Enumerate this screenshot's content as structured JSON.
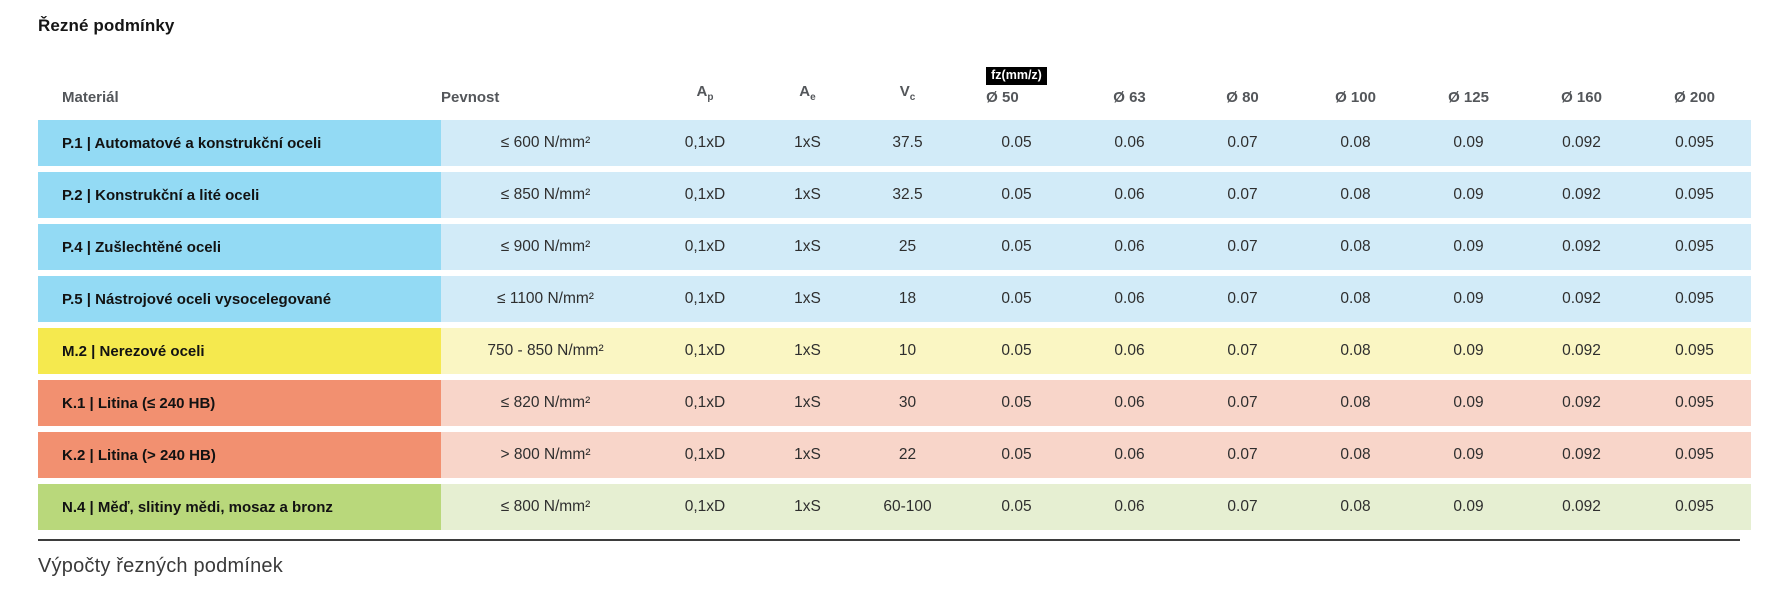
{
  "page": {
    "title": "Řezné podmínky",
    "section_footer": "Výpočty řezných podmínek"
  },
  "table": {
    "headers": {
      "material": "Materiál",
      "pevnost": "Pevnost",
      "ap_base": "A",
      "ap_sub": "p",
      "ae_base": "A",
      "ae_sub": "e",
      "vc_base": "V",
      "vc_sub": "c",
      "fz_badge": "fz(mm/z)",
      "diameters": [
        "Ø 50",
        "Ø 63",
        "Ø 80",
        "Ø 100",
        "Ø 125",
        "Ø 160",
        "Ø 200"
      ]
    },
    "colors": {
      "blue": {
        "label": "#93daf4",
        "body": "#d2ebf8"
      },
      "yellow": {
        "label": "#f5e94e",
        "body": "#faf6c3"
      },
      "orange": {
        "label": "#f29070",
        "body": "#f8d5c9"
      },
      "green": {
        "label": "#b9d87b",
        "body": "#e6efd2"
      }
    },
    "rows": [
      {
        "group": "blue",
        "material": "P.1 | Automatové a konstrukční oceli",
        "pevnost": "≤ 600 N/mm²",
        "ap": "0,1xD",
        "ae": "1xS",
        "vc": "37.5",
        "fz": [
          "0.05",
          "0.06",
          "0.07",
          "0.08",
          "0.09",
          "0.092",
          "0.095"
        ]
      },
      {
        "group": "blue",
        "material": "P.2 | Konstrukční a lité oceli",
        "pevnost": "≤ 850 N/mm²",
        "ap": "0,1xD",
        "ae": "1xS",
        "vc": "32.5",
        "fz": [
          "0.05",
          "0.06",
          "0.07",
          "0.08",
          "0.09",
          "0.092",
          "0.095"
        ]
      },
      {
        "group": "blue",
        "material": "P.4 | Zušlechtěné oceli",
        "pevnost": "≤ 900 N/mm²",
        "ap": "0,1xD",
        "ae": "1xS",
        "vc": "25",
        "fz": [
          "0.05",
          "0.06",
          "0.07",
          "0.08",
          "0.09",
          "0.092",
          "0.095"
        ]
      },
      {
        "group": "blue",
        "material": "P.5 | Nástrojové oceli vysocelegované",
        "pevnost": "≤ 1100 N/mm²",
        "ap": "0,1xD",
        "ae": "1xS",
        "vc": "18",
        "fz": [
          "0.05",
          "0.06",
          "0.07",
          "0.08",
          "0.09",
          "0.092",
          "0.095"
        ]
      },
      {
        "group": "yellow",
        "material": "M.2 | Nerezové oceli",
        "pevnost": "750 - 850 N/mm²",
        "ap": "0,1xD",
        "ae": "1xS",
        "vc": "10",
        "fz": [
          "0.05",
          "0.06",
          "0.07",
          "0.08",
          "0.09",
          "0.092",
          "0.095"
        ]
      },
      {
        "group": "orange",
        "material": "K.1 | Litina (≤ 240 HB)",
        "pevnost": "≤ 820 N/mm²",
        "ap": "0,1xD",
        "ae": "1xS",
        "vc": "30",
        "fz": [
          "0.05",
          "0.06",
          "0.07",
          "0.08",
          "0.09",
          "0.092",
          "0.095"
        ]
      },
      {
        "group": "orange",
        "material": "K.2 | Litina (> 240 HB)",
        "pevnost": "> 800 N/mm²",
        "ap": "0,1xD",
        "ae": "1xS",
        "vc": "22",
        "fz": [
          "0.05",
          "0.06",
          "0.07",
          "0.08",
          "0.09",
          "0.092",
          "0.095"
        ]
      },
      {
        "group": "green",
        "material": "N.4 | Měď, slitiny mědi, mosaz a bronz",
        "pevnost": "≤ 800 N/mm²",
        "ap": "0,1xD",
        "ae": "1xS",
        "vc": "60-100",
        "fz": [
          "0.05",
          "0.06",
          "0.07",
          "0.08",
          "0.09",
          "0.092",
          "0.095"
        ]
      }
    ]
  }
}
